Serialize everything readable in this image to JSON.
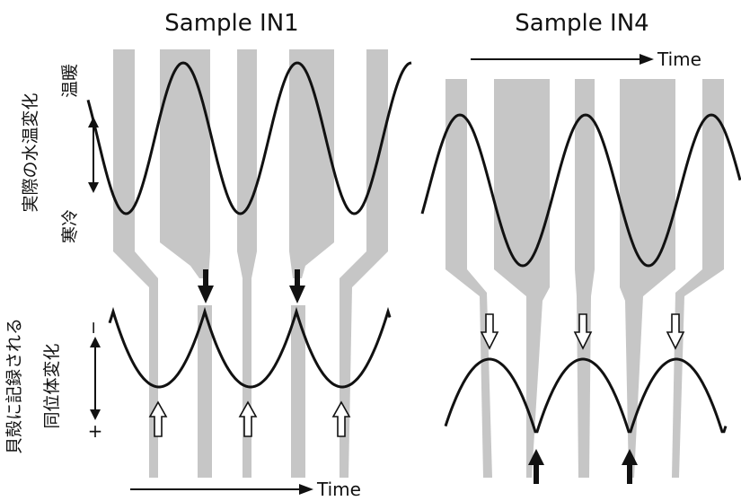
{
  "panels": [
    {
      "title": "Sample IN1",
      "time_label": "Time"
    },
    {
      "title": "Sample IN4",
      "time_label": "Time"
    }
  ],
  "left_labels": {
    "water_temp": "実際の水温変化",
    "warm": "温暖",
    "cold": "寒冷",
    "shell_recorded": "貝殻に記録される",
    "isotope_change": "同位体変化",
    "minus": "−",
    "plus": "+"
  },
  "colors": {
    "band": "#c6c6c6",
    "curve": "#111111",
    "arrow_filled": "#111111",
    "arrow_open": "#ffffff"
  }
}
